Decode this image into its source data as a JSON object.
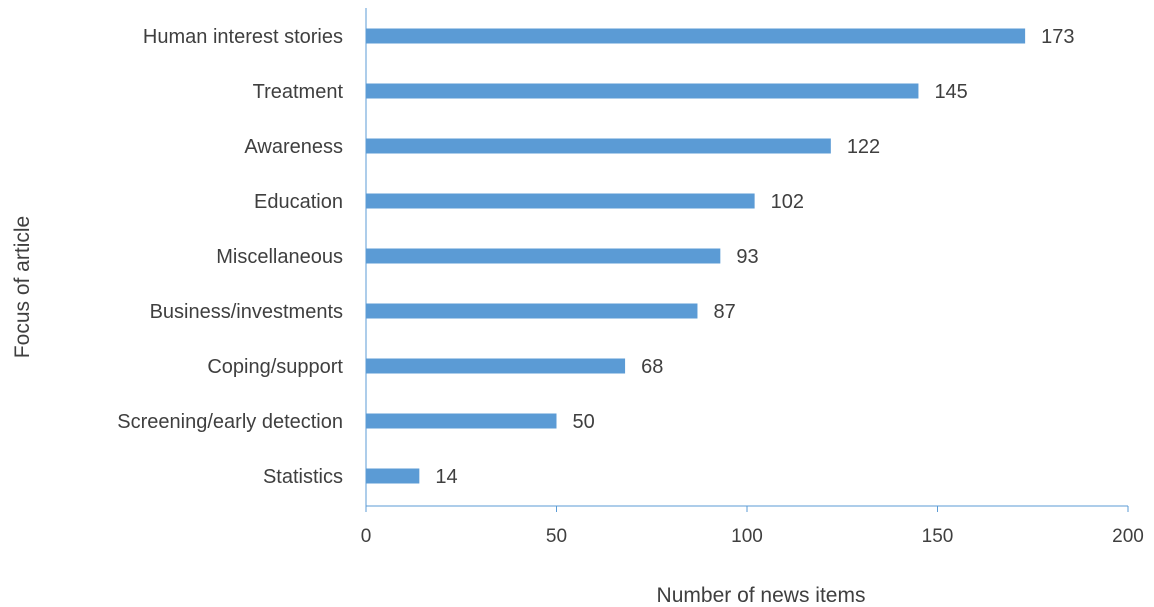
{
  "chart_data": {
    "type": "bar",
    "orientation": "horizontal",
    "title": "",
    "xlabel": "Number of news items",
    "ylabel": "Focus of article",
    "categories": [
      "Human interest stories",
      "Treatment",
      "Awareness",
      "Education",
      "Miscellaneous",
      "Business/investments",
      "Coping/support",
      "Screening/early detection",
      "Statistics"
    ],
    "values": [
      173,
      145,
      122,
      102,
      93,
      87,
      68,
      50,
      14
    ],
    "data_labels": [
      "173",
      "145",
      "122",
      "102",
      "93",
      "87",
      "68",
      "50",
      "14"
    ],
    "xlim": [
      0,
      200
    ],
    "x_ticks": [
      0,
      50,
      100,
      150,
      200
    ],
    "x_tick_labels": [
      "0",
      "50",
      "100",
      "150",
      "200"
    ],
    "grid": false,
    "legend": "none",
    "colors": {
      "bar": "#5b9bd5",
      "axis": "#5b9bd5",
      "text": "#3f3f3f"
    }
  }
}
